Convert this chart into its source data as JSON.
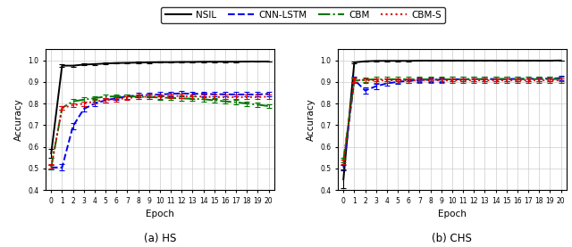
{
  "epochs": [
    0,
    1,
    2,
    3,
    4,
    5,
    6,
    7,
    8,
    9,
    10,
    11,
    12,
    13,
    14,
    15,
    16,
    17,
    18,
    19,
    20
  ],
  "hs": {
    "NSIL": [
      0.57,
      0.975,
      0.975,
      0.98,
      0.982,
      0.985,
      0.987,
      0.988,
      0.989,
      0.99,
      0.991,
      0.991,
      0.992,
      0.992,
      0.993,
      0.993,
      0.993,
      0.993,
      0.994,
      0.994,
      0.994
    ],
    "NSIL_err": [
      0.02,
      0.005,
      0.004,
      0.004,
      0.003,
      0.003,
      0.003,
      0.003,
      0.003,
      0.003,
      0.003,
      0.003,
      0.003,
      0.003,
      0.003,
      0.003,
      0.003,
      0.003,
      0.002,
      0.002,
      0.002
    ],
    "CNN_LSTM": [
      0.505,
      0.505,
      0.695,
      0.775,
      0.8,
      0.815,
      0.825,
      0.833,
      0.838,
      0.84,
      0.842,
      0.845,
      0.847,
      0.845,
      0.845,
      0.843,
      0.843,
      0.842,
      0.842,
      0.842,
      0.845
    ],
    "CNN_LSTM_err": [
      0.01,
      0.015,
      0.015,
      0.012,
      0.01,
      0.01,
      0.01,
      0.01,
      0.01,
      0.01,
      0.01,
      0.01,
      0.01,
      0.01,
      0.01,
      0.01,
      0.01,
      0.01,
      0.01,
      0.01,
      0.01
    ],
    "CBM": [
      0.505,
      0.78,
      0.81,
      0.818,
      0.825,
      0.832,
      0.833,
      0.833,
      0.832,
      0.83,
      0.828,
      0.826,
      0.824,
      0.822,
      0.82,
      0.815,
      0.81,
      0.806,
      0.8,
      0.795,
      0.788
    ],
    "CBM_err": [
      0.01,
      0.01,
      0.01,
      0.01,
      0.01,
      0.01,
      0.01,
      0.01,
      0.01,
      0.01,
      0.01,
      0.01,
      0.01,
      0.01,
      0.01,
      0.01,
      0.01,
      0.01,
      0.01,
      0.01,
      0.01
    ],
    "CBM_S": [
      0.51,
      0.78,
      0.792,
      0.8,
      0.81,
      0.815,
      0.82,
      0.825,
      0.83,
      0.832,
      0.833,
      0.835,
      0.835,
      0.833,
      0.832,
      0.83,
      0.83,
      0.83,
      0.83,
      0.83,
      0.832
    ],
    "CBM_S_err": [
      0.01,
      0.01,
      0.01,
      0.01,
      0.01,
      0.01,
      0.01,
      0.01,
      0.01,
      0.01,
      0.01,
      0.01,
      0.01,
      0.01,
      0.01,
      0.01,
      0.01,
      0.01,
      0.01,
      0.01,
      0.01
    ]
  },
  "chs": {
    "NSIL": [
      0.45,
      0.99,
      0.995,
      0.997,
      0.997,
      0.997,
      0.997,
      0.998,
      0.998,
      0.998,
      0.998,
      0.998,
      0.998,
      0.998,
      0.998,
      0.998,
      0.998,
      0.998,
      0.998,
      0.998,
      0.999
    ],
    "NSIL_err": [
      0.04,
      0.005,
      0.003,
      0.002,
      0.002,
      0.002,
      0.002,
      0.001,
      0.001,
      0.001,
      0.001,
      0.001,
      0.001,
      0.001,
      0.001,
      0.001,
      0.001,
      0.001,
      0.001,
      0.001,
      0.001
    ],
    "CNN_LSTM": [
      0.505,
      0.91,
      0.86,
      0.88,
      0.893,
      0.9,
      0.905,
      0.908,
      0.91,
      0.91,
      0.912,
      0.912,
      0.913,
      0.913,
      0.913,
      0.913,
      0.914,
      0.914,
      0.915,
      0.915,
      0.918
    ],
    "CNN_LSTM_err": [
      0.01,
      0.015,
      0.015,
      0.012,
      0.012,
      0.01,
      0.01,
      0.01,
      0.01,
      0.01,
      0.01,
      0.01,
      0.01,
      0.01,
      0.01,
      0.01,
      0.01,
      0.01,
      0.01,
      0.01,
      0.01
    ],
    "CBM": [
      0.54,
      0.905,
      0.91,
      0.912,
      0.912,
      0.912,
      0.912,
      0.912,
      0.912,
      0.912,
      0.912,
      0.912,
      0.913,
      0.913,
      0.913,
      0.913,
      0.913,
      0.913,
      0.913,
      0.913,
      0.913
    ],
    "CBM_err": [
      0.01,
      0.01,
      0.01,
      0.01,
      0.01,
      0.01,
      0.01,
      0.01,
      0.01,
      0.01,
      0.01,
      0.01,
      0.01,
      0.01,
      0.01,
      0.01,
      0.01,
      0.01,
      0.01,
      0.01,
      0.01
    ],
    "CBM_S": [
      0.53,
      0.91,
      0.907,
      0.907,
      0.907,
      0.907,
      0.907,
      0.907,
      0.907,
      0.907,
      0.907,
      0.907,
      0.907,
      0.907,
      0.907,
      0.907,
      0.907,
      0.907,
      0.907,
      0.907,
      0.907
    ],
    "CBM_S_err": [
      0.01,
      0.01,
      0.01,
      0.01,
      0.01,
      0.01,
      0.01,
      0.01,
      0.01,
      0.01,
      0.01,
      0.01,
      0.01,
      0.01,
      0.01,
      0.01,
      0.01,
      0.01,
      0.01,
      0.01,
      0.01
    ]
  },
  "colors": {
    "NSIL": "#000000",
    "CNN_LSTM": "#0000ee",
    "CBM": "#007700",
    "CBM_S": "#dd0000"
  },
  "linestyles": {
    "NSIL": "-",
    "CNN_LSTM": "--",
    "CBM": "-.",
    "CBM_S": ":"
  },
  "legend_labels": [
    "NSIL",
    "CNN-LSTM",
    "CBM",
    "CBM-S"
  ],
  "legend_keys": [
    "NSIL",
    "CNN_LSTM",
    "CBM",
    "CBM_S"
  ],
  "xlabel": "Epoch",
  "ylabel": "Accuracy",
  "ylim": [
    0.4,
    1.05
  ],
  "title_hs": "(a) HS",
  "title_chs": "(b) CHS",
  "xticks": [
    0,
    1,
    2,
    3,
    4,
    5,
    6,
    7,
    8,
    9,
    10,
    11,
    12,
    13,
    14,
    15,
    16,
    17,
    18,
    19,
    20
  ],
  "yticks": [
    0.4,
    0.5,
    0.6,
    0.7,
    0.8,
    0.9,
    1.0
  ]
}
